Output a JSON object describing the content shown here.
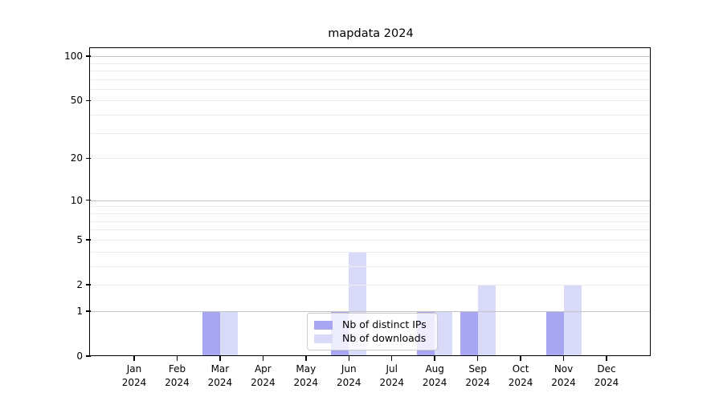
{
  "title": "mapdata 2024",
  "colors": {
    "distinct_ips": "#a6a6f2",
    "downloads": "#d9d9f8",
    "grid_major": "#c4c4c4",
    "grid_minor": "#ececec",
    "axis": "#000000",
    "legend_border": "#cccccc"
  },
  "legend": {
    "items": [
      {
        "label": "Nb of distinct IPs",
        "color": "#a6a6f2"
      },
      {
        "label": "Nb of downloads",
        "color": "#d9d9f8"
      }
    ]
  },
  "chart_data": {
    "type": "bar",
    "title": "mapdata 2024",
    "categories": [
      "Jan 2024",
      "Feb 2024",
      "Mar 2024",
      "Apr 2024",
      "May 2024",
      "Jun 2024",
      "Jul 2024",
      "Aug 2024",
      "Sep 2024",
      "Oct 2024",
      "Nov 2024",
      "Dec 2024"
    ],
    "series": [
      {
        "name": "Nb of distinct IPs",
        "color": "#a6a6f2",
        "values": [
          0,
          0,
          1,
          0,
          0,
          1,
          0,
          1,
          1,
          0,
          1,
          0
        ]
      },
      {
        "name": "Nb of downloads",
        "color": "#d9d9f8",
        "values": [
          0,
          0,
          1,
          0,
          0,
          4,
          0,
          1,
          2,
          0,
          2,
          0
        ]
      }
    ],
    "xlabel": "",
    "ylabel": "",
    "yscale": "log1p",
    "yticks": [
      0,
      1,
      2,
      5,
      10,
      20,
      50,
      100
    ],
    "ylim": [
      0,
      112
    ],
    "grid": "on",
    "grid_major_values": [
      1,
      10,
      100
    ],
    "grid_minor_values": [
      2,
      3,
      4,
      5,
      6,
      7,
      8,
      9,
      20,
      30,
      40,
      50,
      60,
      70,
      80,
      90
    ],
    "legend_position": "lower center"
  }
}
